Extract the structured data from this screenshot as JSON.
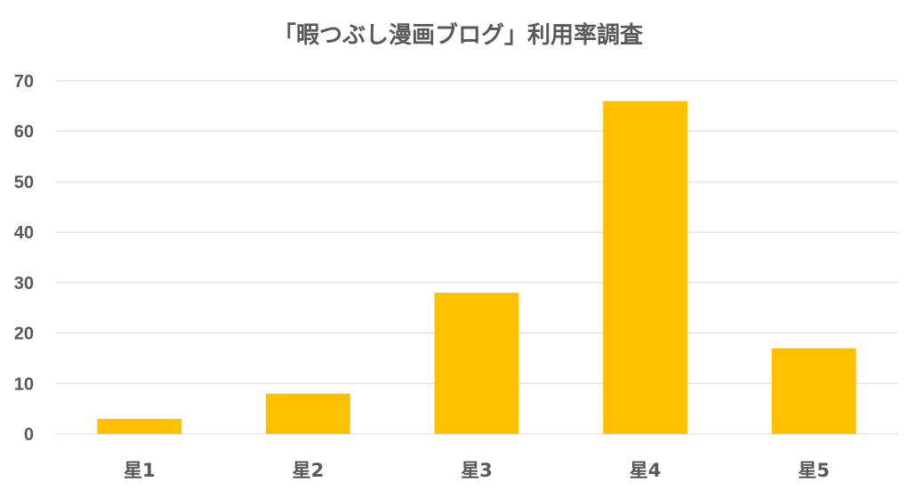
{
  "chart_data": {
    "type": "bar",
    "title": "「暇つぶし漫画ブログ」利用率調査",
    "xlabel": "",
    "ylabel": "",
    "categories": [
      "星1",
      "星2",
      "星3",
      "星4",
      "星5"
    ],
    "values": [
      3,
      8,
      28,
      66,
      17
    ],
    "ylim": [
      0,
      70
    ],
    "yticks": [
      0,
      10,
      20,
      30,
      40,
      50,
      60,
      70
    ],
    "grid": true,
    "legend": "none",
    "bar_color": "#ffc000"
  }
}
